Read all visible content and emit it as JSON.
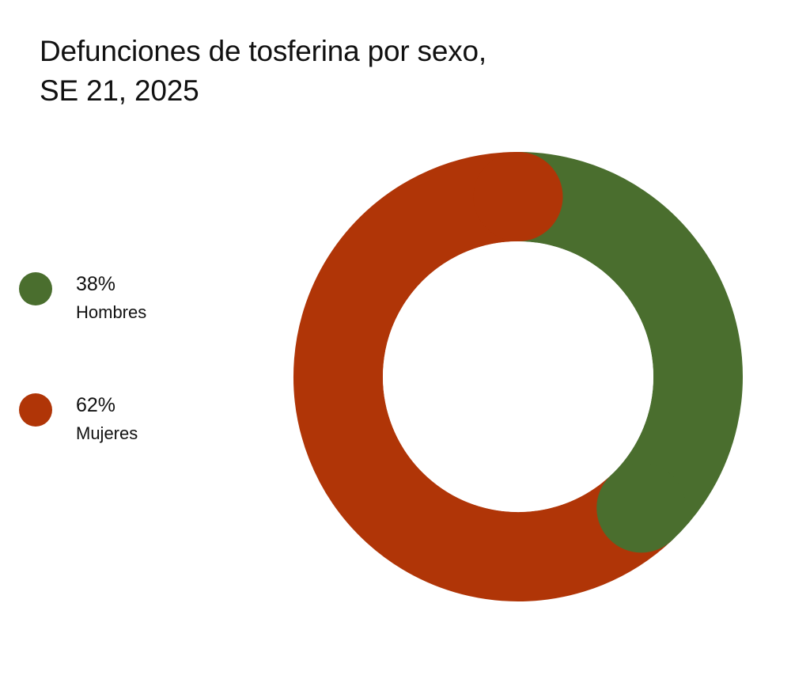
{
  "title": {
    "line1": "Defunciones de tosferina por sexo,",
    "line2": "SE 21, 2025"
  },
  "legend": [
    {
      "percent": "38%",
      "label": "Hombres",
      "color": "#4a6e2e"
    },
    {
      "percent": "62%",
      "label": "Mujeres",
      "color": "#b03507"
    }
  ],
  "chart_data": {
    "type": "pie",
    "subtype": "donut",
    "title": "Defunciones de tosferina por sexo, SE 21, 2025",
    "categories": [
      "Hombres",
      "Mujeres"
    ],
    "values": [
      38,
      62
    ],
    "unit": "%",
    "colors": [
      "#4a6e2e",
      "#b03507"
    ],
    "legend_position": "left",
    "start_angle": "12 o'clock, clockwise",
    "rounded_caps": true
  }
}
